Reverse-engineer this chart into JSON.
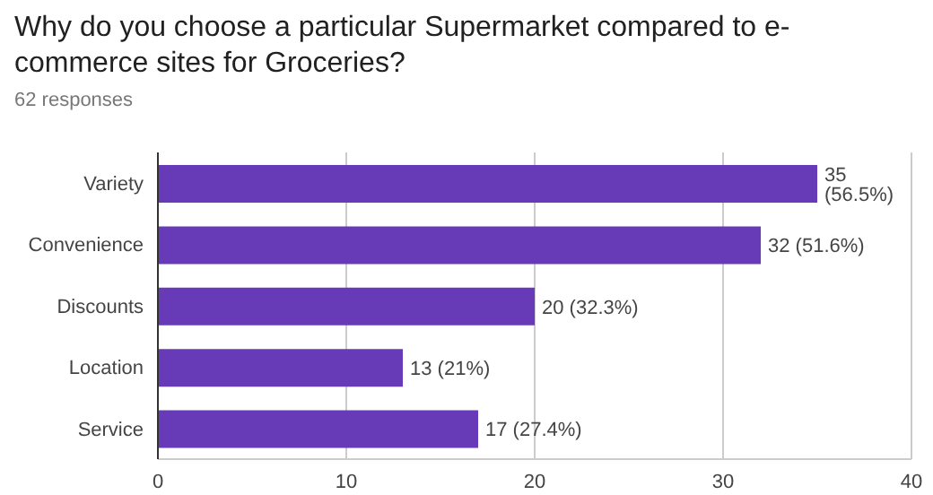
{
  "chart_data": {
    "type": "bar",
    "orientation": "horizontal",
    "title": "Why do you choose a particular Supermarket compared to e-commerce sites for Groceries?",
    "subtitle": "62 responses",
    "categories": [
      "Variety",
      "Convenience",
      "Discounts",
      "Location",
      "Service"
    ],
    "values": [
      35,
      32,
      20,
      13,
      17
    ],
    "value_labels": [
      "35 (56.5%)",
      "32 (51.6%)",
      "20 (32.3%)",
      "13 (21%)",
      "17 (27.4%)"
    ],
    "color": "#673ab7",
    "xlim": [
      0,
      40
    ],
    "xticks": [
      0,
      10,
      20,
      30,
      40
    ],
    "grid": "x",
    "legend": false
  }
}
